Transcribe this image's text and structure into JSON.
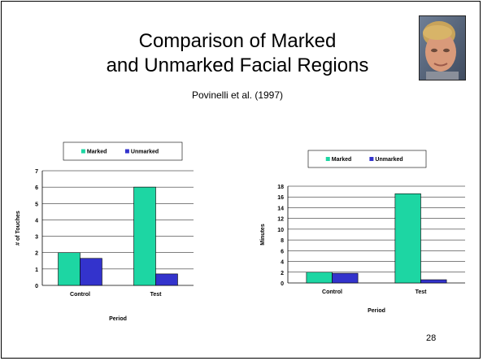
{
  "slide": {
    "title_line1": "Comparison of Marked",
    "title_line2": "and Unmarked Facial Regions",
    "subtitle": "Povinelli et al. (1997)",
    "page_number": "28"
  },
  "colors": {
    "marked": "#1DD6A3",
    "unmarked": "#3333CC"
  },
  "chart_data": [
    {
      "type": "bar",
      "categories": [
        "Control",
        "Test"
      ],
      "series": [
        {
          "name": "Marked",
          "values": [
            2.0,
            6.0
          ]
        },
        {
          "name": "Unmarked",
          "values": [
            1.65,
            0.7
          ]
        }
      ],
      "xlabel": "Period",
      "ylabel": "# of Touches",
      "ylim": [
        0,
        7
      ],
      "yticks": [
        0,
        1,
        2,
        3,
        4,
        5,
        6,
        7
      ],
      "grid": true,
      "legend": "top"
    },
    {
      "type": "bar",
      "categories": [
        "Control",
        "Test"
      ],
      "series": [
        {
          "name": "Marked",
          "values": [
            2.0,
            16.6
          ]
        },
        {
          "name": "Unmarked",
          "values": [
            1.8,
            0.6
          ]
        }
      ],
      "xlabel": "Period",
      "ylabel": "Minutes",
      "ylim": [
        0,
        18
      ],
      "yticks": [
        0,
        2,
        4,
        6,
        8,
        10,
        12,
        14,
        16,
        18
      ],
      "grid": true,
      "legend": "top"
    }
  ]
}
